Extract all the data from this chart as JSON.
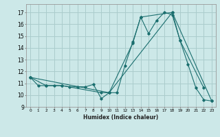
{
  "title": "",
  "xlabel": "Humidex (Indice chaleur)",
  "bg_color": "#cce8e8",
  "grid_color": "#aacccc",
  "line_color": "#1a6e6e",
  "xlim": [
    -0.5,
    23.5
  ],
  "ylim": [
    9,
    17.7
  ],
  "yticks": [
    9,
    10,
    11,
    12,
    13,
    14,
    15,
    16,
    17
  ],
  "xticks": [
    0,
    1,
    2,
    3,
    4,
    5,
    6,
    7,
    8,
    9,
    10,
    11,
    12,
    13,
    14,
    15,
    16,
    17,
    18,
    19,
    20,
    21,
    22,
    23
  ],
  "xtick_labels": [
    "0",
    "1",
    "2",
    "3",
    "4",
    "5",
    "6",
    "7",
    "8",
    "9",
    "10",
    "11",
    "12",
    "13",
    "14",
    "15",
    "16",
    "17",
    "18",
    "19",
    "20",
    "21",
    "22",
    "23"
  ],
  "line1_x": [
    0,
    1,
    2,
    3,
    4,
    5,
    6,
    7,
    8,
    9,
    10,
    11,
    12,
    13,
    14,
    15,
    16,
    17,
    18,
    19,
    20,
    21,
    22,
    23
  ],
  "line1_y": [
    11.5,
    10.8,
    10.8,
    10.8,
    10.8,
    10.7,
    10.7,
    10.7,
    10.9,
    9.7,
    10.2,
    10.2,
    12.5,
    14.5,
    16.6,
    15.2,
    16.3,
    17.0,
    16.8,
    14.6,
    12.6,
    10.6,
    9.6,
    9.5
  ],
  "line2_x": [
    0,
    2,
    4,
    9,
    10,
    13,
    14,
    18,
    19,
    22
  ],
  "line2_y": [
    11.5,
    10.8,
    10.8,
    10.2,
    10.2,
    14.4,
    16.6,
    17.0,
    14.6,
    10.6
  ],
  "line3_x": [
    0,
    10,
    18,
    23
  ],
  "line3_y": [
    11.5,
    10.2,
    17.0,
    9.5
  ]
}
